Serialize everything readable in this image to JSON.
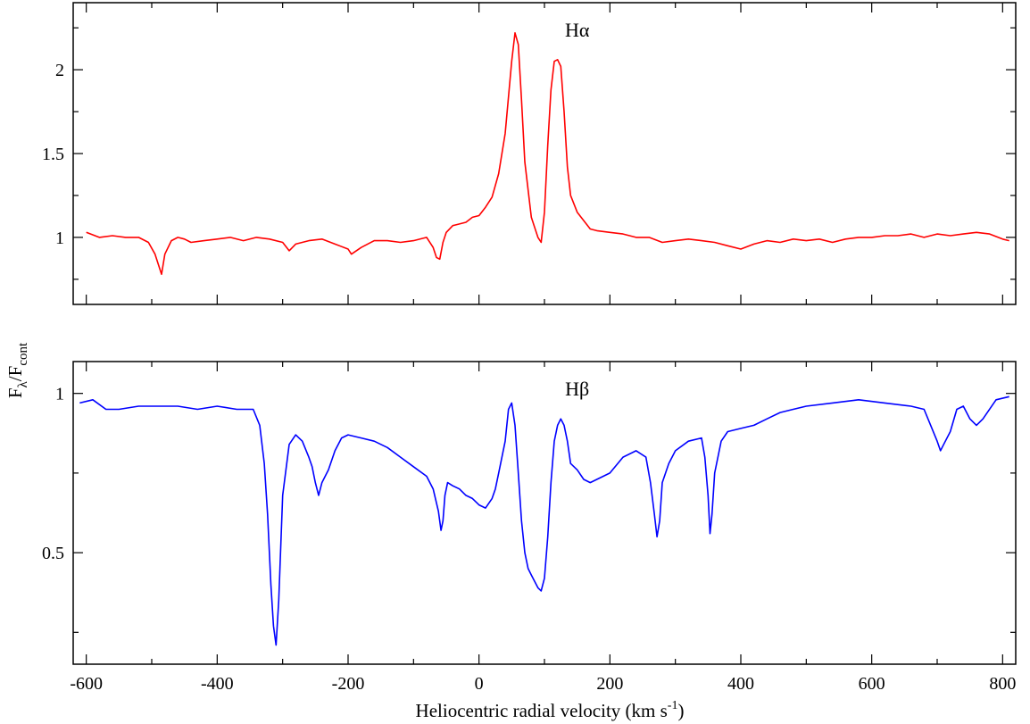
{
  "chart_data": {
    "type": "line",
    "xlabel": "Heliocentric radial velocity (km s",
    "xlabel_superscript": "-1",
    "xlabel_suffix": ")",
    "ylabel": {
      "main": "F",
      "sub1": "λ",
      "slash": "/F",
      "sub2": "cont"
    },
    "x_ticks": [
      -600,
      -400,
      -200,
      0,
      200,
      400,
      600,
      800
    ],
    "x_tick_labels": [
      "-600",
      "-400",
      "-200",
      "0",
      "200",
      "400",
      "600",
      "800"
    ],
    "xlim": [
      -620,
      820
    ],
    "grid": false,
    "panels": [
      {
        "label": "Hα",
        "color": "#ff0000",
        "ylim": [
          0.6,
          2.4
        ],
        "y_ticks": [
          1,
          1.5,
          2
        ],
        "y_tick_labels": [
          "1",
          "1.5",
          "2"
        ],
        "series": [
          {
            "color": "#ff0000",
            "x": [
              -600,
              -580,
              -560,
              -540,
              -520,
              -505,
              -495,
              -490,
              -485,
              -480,
              -470,
              -460,
              -450,
              -440,
              -420,
              -400,
              -380,
              -360,
              -340,
              -320,
              -300,
              -290,
              -280,
              -260,
              -240,
              -220,
              -200,
              -195,
              -180,
              -160,
              -140,
              -120,
              -100,
              -80,
              -70,
              -65,
              -60,
              -55,
              -50,
              -40,
              -30,
              -20,
              -10,
              0,
              10,
              20,
              30,
              40,
              50,
              55,
              60,
              65,
              70,
              80,
              90,
              95,
              100,
              105,
              110,
              115,
              120,
              125,
              130,
              135,
              140,
              150,
              160,
              170,
              180,
              200,
              220,
              240,
              260,
              280,
              300,
              320,
              340,
              360,
              380,
              400,
              420,
              440,
              460,
              480,
              500,
              520,
              540,
              560,
              580,
              600,
              620,
              640,
              660,
              680,
              700,
              720,
              740,
              760,
              780,
              800,
              810
            ],
            "y": [
              1.03,
              1.0,
              1.01,
              1.0,
              1.0,
              0.97,
              0.9,
              0.84,
              0.78,
              0.9,
              0.98,
              1.0,
              0.99,
              0.97,
              0.98,
              0.99,
              1.0,
              0.98,
              1.0,
              0.99,
              0.97,
              0.92,
              0.96,
              0.98,
              0.99,
              0.96,
              0.93,
              0.9,
              0.94,
              0.98,
              0.98,
              0.97,
              0.98,
              1.0,
              0.94,
              0.88,
              0.87,
              0.97,
              1.03,
              1.07,
              1.08,
              1.09,
              1.12,
              1.13,
              1.18,
              1.24,
              1.38,
              1.62,
              2.05,
              2.22,
              2.15,
              1.82,
              1.45,
              1.12,
              1.0,
              0.97,
              1.15,
              1.55,
              1.88,
              2.05,
              2.06,
              2.02,
              1.75,
              1.42,
              1.25,
              1.15,
              1.1,
              1.05,
              1.04,
              1.03,
              1.02,
              1.0,
              1.0,
              0.97,
              0.98,
              0.99,
              0.98,
              0.97,
              0.95,
              0.93,
              0.96,
              0.98,
              0.97,
              0.99,
              0.98,
              0.99,
              0.97,
              0.99,
              1.0,
              1.0,
              1.01,
              1.01,
              1.02,
              1.0,
              1.02,
              1.01,
              1.02,
              1.03,
              1.02,
              0.99,
              0.98
            ]
          }
        ]
      },
      {
        "label": "Hβ",
        "color": "#0000ff",
        "ylim": [
          0.15,
          1.1
        ],
        "y_ticks": [
          0.5,
          1
        ],
        "y_tick_labels": [
          "0.5",
          "1"
        ],
        "series": [
          {
            "color": "#0000ff",
            "x": [
              -610,
              -590,
              -570,
              -550,
              -520,
              -490,
              -460,
              -430,
              -400,
              -370,
              -345,
              -335,
              -328,
              -323,
              -318,
              -314,
              -310,
              -306,
              -300,
              -290,
              -280,
              -270,
              -260,
              -255,
              -250,
              -245,
              -240,
              -230,
              -220,
              -210,
              -200,
              -180,
              -160,
              -140,
              -120,
              -100,
              -80,
              -70,
              -62,
              -58,
              -55,
              -52,
              -48,
              -40,
              -30,
              -20,
              -10,
              0,
              10,
              20,
              25,
              30,
              40,
              45,
              50,
              55,
              60,
              65,
              70,
              75,
              80,
              85,
              90,
              95,
              100,
              105,
              110,
              115,
              120,
              125,
              130,
              135,
              140,
              150,
              160,
              170,
              180,
              200,
              220,
              240,
              255,
              262,
              268,
              272,
              276,
              280,
              290,
              300,
              320,
              340,
              345,
              350,
              353,
              356,
              360,
              370,
              380,
              400,
              420,
              440,
              460,
              480,
              500,
              540,
              580,
              620,
              660,
              680,
              690,
              700,
              705,
              710,
              720,
              730,
              740,
              750,
              760,
              770,
              790,
              810
            ],
            "y": [
              0.97,
              0.98,
              0.95,
              0.95,
              0.96,
              0.96,
              0.96,
              0.95,
              0.96,
              0.95,
              0.95,
              0.9,
              0.78,
              0.62,
              0.4,
              0.27,
              0.21,
              0.35,
              0.68,
              0.84,
              0.87,
              0.85,
              0.8,
              0.77,
              0.72,
              0.68,
              0.72,
              0.76,
              0.82,
              0.86,
              0.87,
              0.86,
              0.85,
              0.83,
              0.8,
              0.77,
              0.74,
              0.7,
              0.63,
              0.57,
              0.6,
              0.68,
              0.72,
              0.71,
              0.7,
              0.68,
              0.67,
              0.65,
              0.64,
              0.67,
              0.7,
              0.75,
              0.85,
              0.95,
              0.97,
              0.9,
              0.75,
              0.6,
              0.5,
              0.45,
              0.43,
              0.41,
              0.39,
              0.38,
              0.42,
              0.55,
              0.72,
              0.85,
              0.9,
              0.92,
              0.9,
              0.85,
              0.78,
              0.76,
              0.73,
              0.72,
              0.73,
              0.75,
              0.8,
              0.82,
              0.8,
              0.72,
              0.62,
              0.55,
              0.6,
              0.72,
              0.78,
              0.82,
              0.85,
              0.86,
              0.8,
              0.68,
              0.56,
              0.62,
              0.75,
              0.85,
              0.88,
              0.89,
              0.9,
              0.92,
              0.94,
              0.95,
              0.96,
              0.97,
              0.98,
              0.97,
              0.96,
              0.95,
              0.9,
              0.85,
              0.82,
              0.84,
              0.88,
              0.95,
              0.96,
              0.92,
              0.9,
              0.92,
              0.98,
              0.99
            ]
          }
        ]
      }
    ]
  }
}
